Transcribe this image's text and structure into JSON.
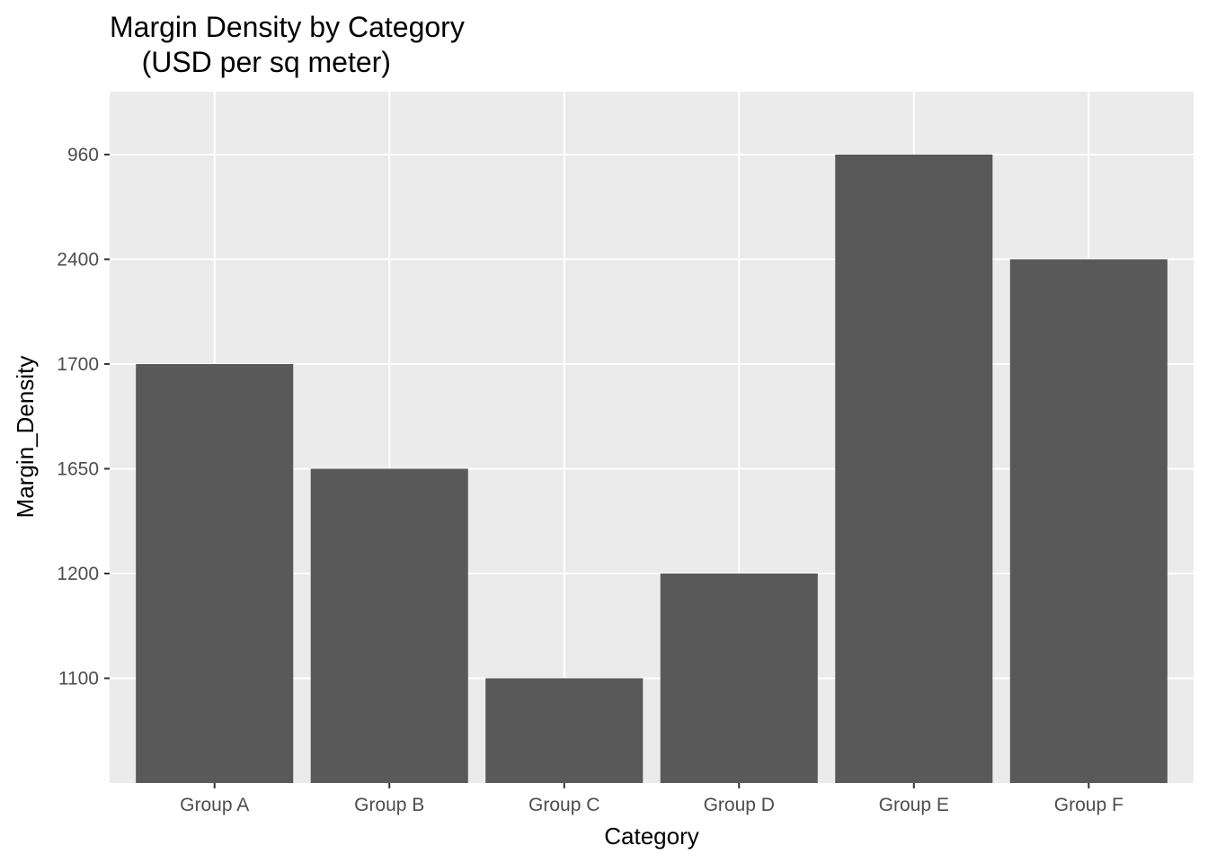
{
  "chart_data": {
    "type": "bar",
    "title_line1": "Margin Density by Category",
    "title_line2": "    (USD per sq meter)",
    "xlabel": "Category",
    "ylabel": "Margin_Density",
    "categories": [
      "Group A",
      "Group B",
      "Group C",
      "Group D",
      "Group E",
      "Group F"
    ],
    "y_ticks": [
      "1100",
      "1200",
      "1650",
      "1700",
      "2400",
      "960"
    ],
    "values": [
      "1700",
      "1650",
      "1100",
      "1200",
      "960",
      "2400"
    ],
    "bar_color": "#595959",
    "panel_background": "#ebebeb",
    "grid_color": "#ffffff",
    "grid": true,
    "y_axis_type": "discrete",
    "legend": "none"
  }
}
